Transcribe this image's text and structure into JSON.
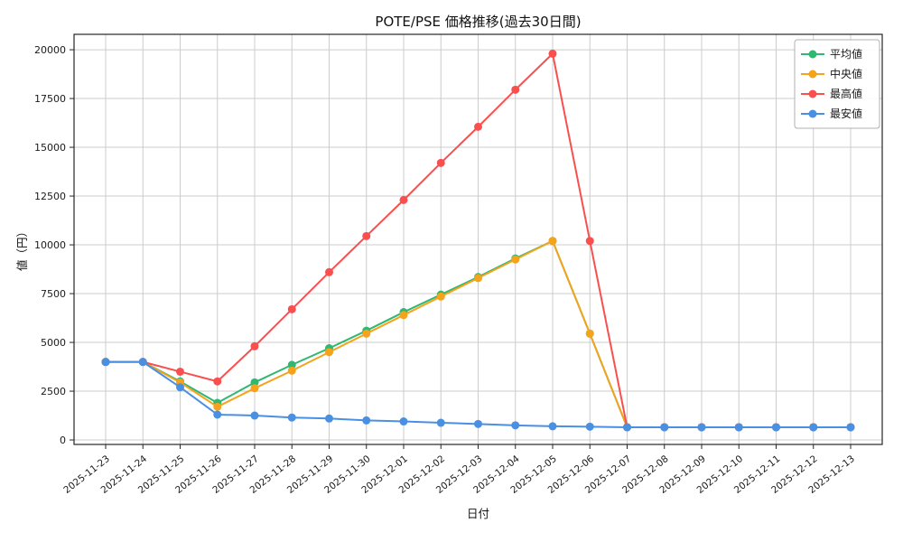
{
  "chart_data": {
    "type": "line",
    "title": "POTE/PSE 価格推移(過去30日間)",
    "xlabel": "日付",
    "ylabel": "値（円）",
    "categories": [
      "2025-11-23",
      "2025-11-24",
      "2025-11-25",
      "2025-11-26",
      "2025-11-27",
      "2025-11-28",
      "2025-11-29",
      "2025-11-30",
      "2025-12-01",
      "2025-12-02",
      "2025-12-03",
      "2025-12-04",
      "2025-12-05",
      "2025-12-06",
      "2025-12-07",
      "2025-12-08",
      "2025-12-09",
      "2025-12-10",
      "2025-12-11",
      "2025-12-12",
      "2025-12-13"
    ],
    "series": [
      {
        "name": "平均値",
        "key": "average",
        "color": "#2eb872",
        "values": [
          4000,
          4000,
          3000,
          1900,
          2950,
          3850,
          4700,
          5600,
          6550,
          7450,
          8350,
          9300,
          10200,
          5450,
          650,
          650,
          650,
          650,
          650,
          650,
          650
        ]
      },
      {
        "name": "中央値",
        "key": "median",
        "color": "#f5a31a",
        "values": [
          4000,
          4000,
          2950,
          1700,
          2650,
          3550,
          4500,
          5450,
          6400,
          7350,
          8300,
          9250,
          10200,
          5450,
          650,
          650,
          650,
          650,
          650,
          650,
          650
        ]
      },
      {
        "name": "最高値",
        "key": "highest",
        "color": "#f94f4f",
        "values": [
          4000,
          4000,
          3500,
          3000,
          4800,
          6700,
          8600,
          10450,
          12300,
          14200,
          16050,
          17950,
          19800,
          10200,
          650,
          650,
          650,
          650,
          650,
          650,
          650
        ]
      },
      {
        "name": "最安値",
        "key": "lowest",
        "color": "#4a90e2",
        "values": [
          4000,
          4000,
          2700,
          1300,
          1250,
          1150,
          1100,
          1000,
          950,
          880,
          820,
          750,
          700,
          680,
          650,
          650,
          650,
          650,
          650,
          650,
          650
        ]
      }
    ],
    "ylim": [
      -230,
      20790
    ],
    "yticks": [
      0,
      2500,
      5000,
      7500,
      10000,
      12500,
      15000,
      17500,
      20000
    ],
    "grid": true,
    "legend_position": "top-right",
    "grid_color": "#cccccc",
    "axis_color": "#262626"
  }
}
